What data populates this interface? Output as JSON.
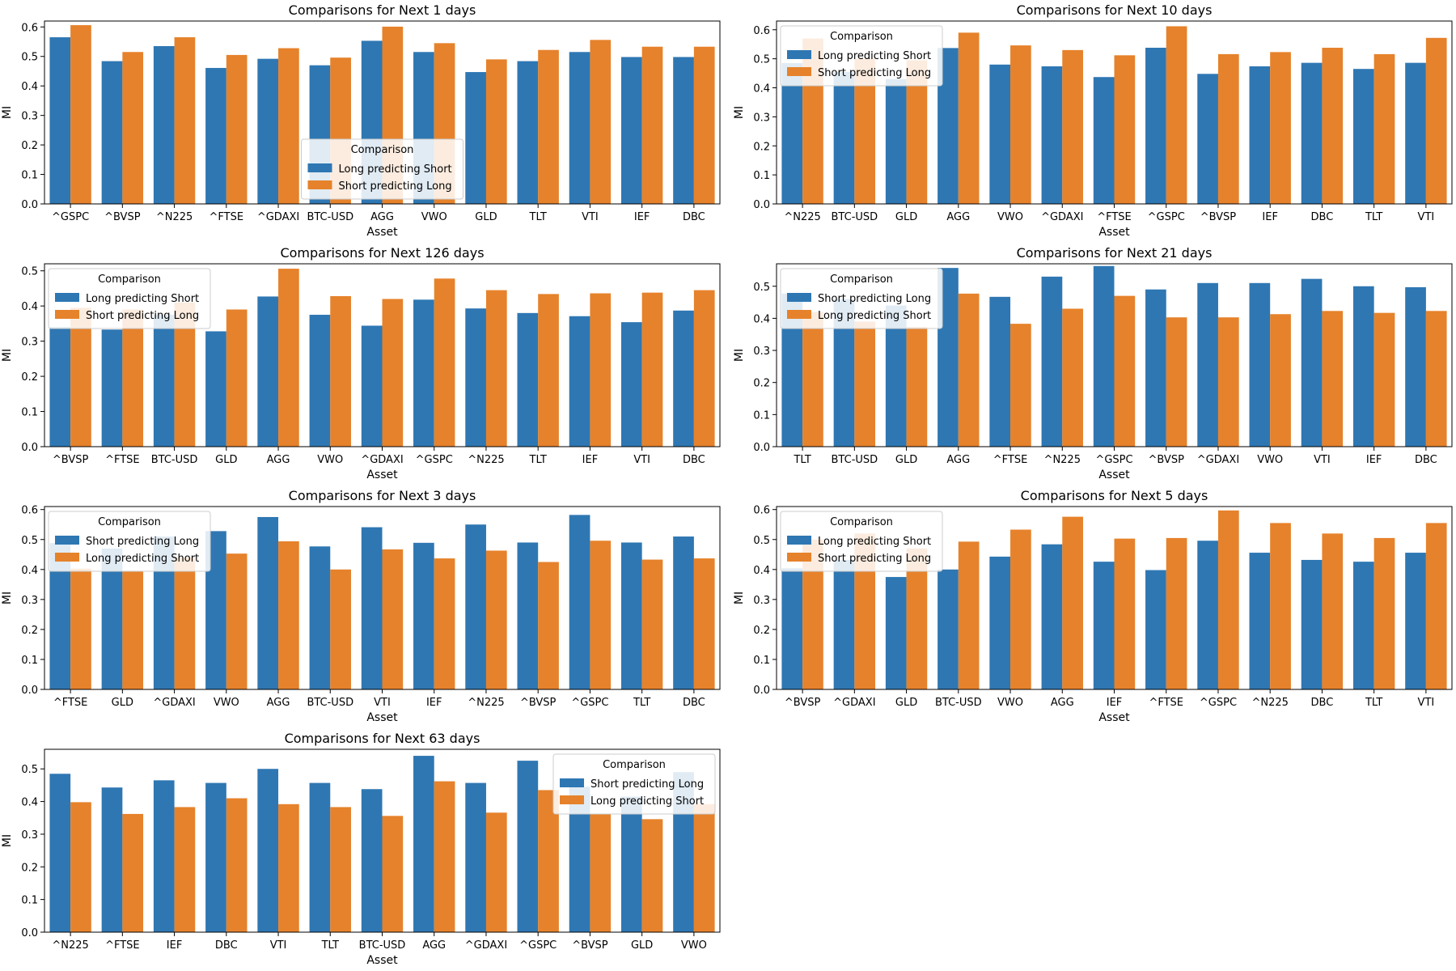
{
  "colors": {
    "blue": "#2e77b3",
    "orange": "#e6822b"
  },
  "legend_title": "Comparison",
  "chart_data": [
    {
      "type": "bar",
      "title": "Comparisons for Next 1 days",
      "xlabel": "Asset",
      "ylabel": "MI",
      "ylim": [
        0,
        0.62
      ],
      "yticks": [
        0.0,
        0.1,
        0.2,
        0.3,
        0.4,
        0.5,
        0.6
      ],
      "legend_loc": "lower-center",
      "categories": [
        "^GSPC",
        "^BVSP",
        "^N225",
        "^FTSE",
        "^GDAXI",
        "BTC-USD",
        "AGG",
        "VWO",
        "GLD",
        "TLT",
        "VTI",
        "IEF",
        "DBC"
      ],
      "series": [
        {
          "name": "Long predicting Short",
          "color": "#2e77b3",
          "values": [
            0.565,
            0.484,
            0.535,
            0.461,
            0.492,
            0.47,
            0.553,
            0.515,
            0.447,
            0.484,
            0.515,
            0.498,
            0.498
          ]
        },
        {
          "name": "Short predicting Long",
          "color": "#e6822b",
          "values": [
            0.606,
            0.515,
            0.565,
            0.505,
            0.528,
            0.496,
            0.601,
            0.545,
            0.49,
            0.522,
            0.556,
            0.533,
            0.533
          ]
        }
      ]
    },
    {
      "type": "bar",
      "title": "Comparisons for Next 10 days",
      "xlabel": "Asset",
      "ylabel": "MI",
      "ylim": [
        0,
        0.63
      ],
      "yticks": [
        0.0,
        0.1,
        0.2,
        0.3,
        0.4,
        0.5,
        0.6
      ],
      "legend_loc": "upper-left",
      "categories": [
        "^N225",
        "BTC-USD",
        "GLD",
        "AGG",
        "VWO",
        "^GDAXI",
        "^FTSE",
        "^GSPC",
        "^BVSP",
        "IEF",
        "DBC",
        "TLT",
        "VTI"
      ],
      "series": [
        {
          "name": "Long predicting Short",
          "color": "#2e77b3",
          "values": [
            0.485,
            0.455,
            0.43,
            0.537,
            0.48,
            0.474,
            0.437,
            0.538,
            0.448,
            0.474,
            0.486,
            0.465,
            0.486
          ]
        },
        {
          "name": "Short predicting Long",
          "color": "#e6822b",
          "values": [
            0.57,
            0.5,
            0.495,
            0.59,
            0.546,
            0.53,
            0.512,
            0.612,
            0.516,
            0.523,
            0.538,
            0.516,
            0.572
          ]
        }
      ]
    },
    {
      "type": "bar",
      "title": "Comparisons for Next 126 days",
      "xlabel": "Asset",
      "ylabel": "MI",
      "ylim": [
        0,
        0.52
      ],
      "yticks": [
        0.0,
        0.1,
        0.2,
        0.3,
        0.4,
        0.5
      ],
      "legend_loc": "upper-left",
      "categories": [
        "^BVSP",
        "^FTSE",
        "BTC-USD",
        "GLD",
        "AGG",
        "VWO",
        "^GDAXI",
        "^GSPC",
        "^N225",
        "TLT",
        "IEF",
        "VTI",
        "DBC"
      ],
      "series": [
        {
          "name": "Long predicting Short",
          "color": "#2e77b3",
          "values": [
            0.34,
            0.333,
            0.375,
            0.328,
            0.427,
            0.375,
            0.344,
            0.418,
            0.393,
            0.38,
            0.371,
            0.354,
            0.387
          ]
        },
        {
          "name": "Short predicting Long",
          "color": "#e6822b",
          "values": [
            0.395,
            0.39,
            0.41,
            0.39,
            0.506,
            0.428,
            0.42,
            0.478,
            0.445,
            0.434,
            0.436,
            0.438,
            0.445
          ]
        }
      ]
    },
    {
      "type": "bar",
      "title": "Comparisons for Next 21 days",
      "xlabel": "Asset",
      "ylabel": "MI",
      "ylim": [
        0,
        0.57
      ],
      "yticks": [
        0.0,
        0.1,
        0.2,
        0.3,
        0.4,
        0.5
      ],
      "legend_loc": "upper-left",
      "categories": [
        "TLT",
        "BTC-USD",
        "GLD",
        "AGG",
        "^FTSE",
        "^N225",
        "^GSPC",
        "^BVSP",
        "^GDAXI",
        "VWO",
        "VTI",
        "IEF",
        "DBC"
      ],
      "series": [
        {
          "name": "Short predicting Long",
          "color": "#2e77b3",
          "values": [
            0.477,
            0.46,
            0.44,
            0.557,
            0.467,
            0.53,
            0.563,
            0.49,
            0.51,
            0.51,
            0.523,
            0.5,
            0.497
          ]
        },
        {
          "name": "Long predicting Short",
          "color": "#e6822b",
          "values": [
            0.42,
            0.39,
            0.373,
            0.477,
            0.383,
            0.43,
            0.47,
            0.403,
            0.403,
            0.413,
            0.423,
            0.417,
            0.423
          ]
        }
      ]
    },
    {
      "type": "bar",
      "title": "Comparisons for Next 3 days",
      "xlabel": "Asset",
      "ylabel": "MI",
      "ylim": [
        0,
        0.61
      ],
      "yticks": [
        0.0,
        0.1,
        0.2,
        0.3,
        0.4,
        0.5,
        0.6
      ],
      "legend_loc": "upper-left",
      "categories": [
        "^FTSE",
        "GLD",
        "^GDAXI",
        "VWO",
        "AGG",
        "BTC-USD",
        "VTI",
        "IEF",
        "^N225",
        "^BVSP",
        "^GSPC",
        "TLT",
        "DBC"
      ],
      "series": [
        {
          "name": "Short predicting Long",
          "color": "#2e77b3",
          "values": [
            0.488,
            0.47,
            0.51,
            0.528,
            0.575,
            0.477,
            0.541,
            0.489,
            0.55,
            0.49,
            0.582,
            0.49,
            0.51
          ]
        },
        {
          "name": "Long predicting Short",
          "color": "#e6822b",
          "values": [
            0.403,
            0.393,
            0.44,
            0.453,
            0.494,
            0.4,
            0.467,
            0.437,
            0.463,
            0.425,
            0.496,
            0.433,
            0.437
          ]
        }
      ]
    },
    {
      "type": "bar",
      "title": "Comparisons for Next 5 days",
      "xlabel": "Asset",
      "ylabel": "MI",
      "ylim": [
        0,
        0.61
      ],
      "yticks": [
        0.0,
        0.1,
        0.2,
        0.3,
        0.4,
        0.5,
        0.6
      ],
      "legend_loc": "upper-left",
      "categories": [
        "^BVSP",
        "^GDAXI",
        "GLD",
        "BTC-USD",
        "VWO",
        "AGG",
        "IEF",
        "^FTSE",
        "^GSPC",
        "^N225",
        "DBC",
        "TLT",
        "VTI"
      ],
      "series": [
        {
          "name": "Long predicting Short",
          "color": "#2e77b3",
          "values": [
            0.404,
            0.432,
            0.375,
            0.4,
            0.443,
            0.484,
            0.426,
            0.398,
            0.496,
            0.456,
            0.432,
            0.426,
            0.456
          ]
        },
        {
          "name": "Short predicting Long",
          "color": "#e6822b",
          "values": [
            0.5,
            0.52,
            0.47,
            0.493,
            0.533,
            0.576,
            0.503,
            0.505,
            0.597,
            0.555,
            0.52,
            0.505,
            0.555
          ]
        }
      ]
    },
    {
      "type": "bar",
      "title": "Comparisons for Next 63 days",
      "xlabel": "Asset",
      "ylabel": "MI",
      "ylim": [
        0,
        0.56
      ],
      "yticks": [
        0.0,
        0.1,
        0.2,
        0.3,
        0.4,
        0.5
      ],
      "legend_loc": "upper-right",
      "categories": [
        "^N225",
        "^FTSE",
        "IEF",
        "DBC",
        "VTI",
        "TLT",
        "BTC-USD",
        "AGG",
        "^GDAXI",
        "^GSPC",
        "^BVSP",
        "GLD",
        "VWO"
      ],
      "series": [
        {
          "name": "Short predicting Long",
          "color": "#2e77b3",
          "values": [
            0.485,
            0.443,
            0.465,
            0.457,
            0.5,
            0.457,
            0.438,
            0.54,
            0.457,
            0.525,
            0.445,
            0.415,
            0.49
          ]
        },
        {
          "name": "Long predicting Short",
          "color": "#e6822b",
          "values": [
            0.398,
            0.362,
            0.383,
            0.41,
            0.392,
            0.383,
            0.356,
            0.462,
            0.366,
            0.435,
            0.363,
            0.346,
            0.392
          ]
        }
      ]
    }
  ]
}
